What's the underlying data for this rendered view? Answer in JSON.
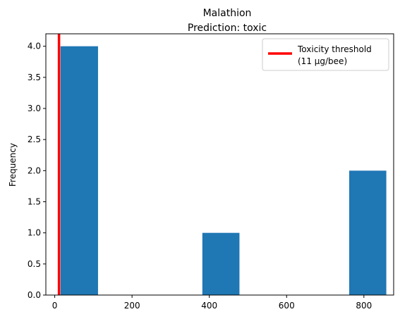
{
  "chart_data": {
    "type": "bar",
    "title": "Malathion",
    "subtitle": "Prediction: toxic",
    "xlabel": "",
    "ylabel": "Frequency",
    "xlim": [
      -23,
      877
    ],
    "ylim": [
      0,
      4.2
    ],
    "xticks": [
      0,
      200,
      400,
      600,
      800
    ],
    "yticks": [
      0.0,
      0.5,
      1.0,
      1.5,
      2.0,
      2.5,
      3.0,
      3.5,
      4.0
    ],
    "ytick_labels": [
      "0.0",
      "0.5",
      "1.0",
      "1.5",
      "2.0",
      "2.5",
      "3.0",
      "3.5",
      "4.0"
    ],
    "bars": [
      {
        "x0": 15,
        "x1": 112,
        "value": 4
      },
      {
        "x0": 382,
        "x1": 478,
        "value": 1
      },
      {
        "x0": 762,
        "x1": 858,
        "value": 2
      }
    ],
    "threshold": {
      "x": 11,
      "label_line1": "Toxicity threshold",
      "label_line2": "(11 µg/bee)"
    },
    "grid": false,
    "legend_position": "top-right",
    "colors": {
      "bar": "#1f77b4",
      "threshold": "#ff0000"
    }
  }
}
